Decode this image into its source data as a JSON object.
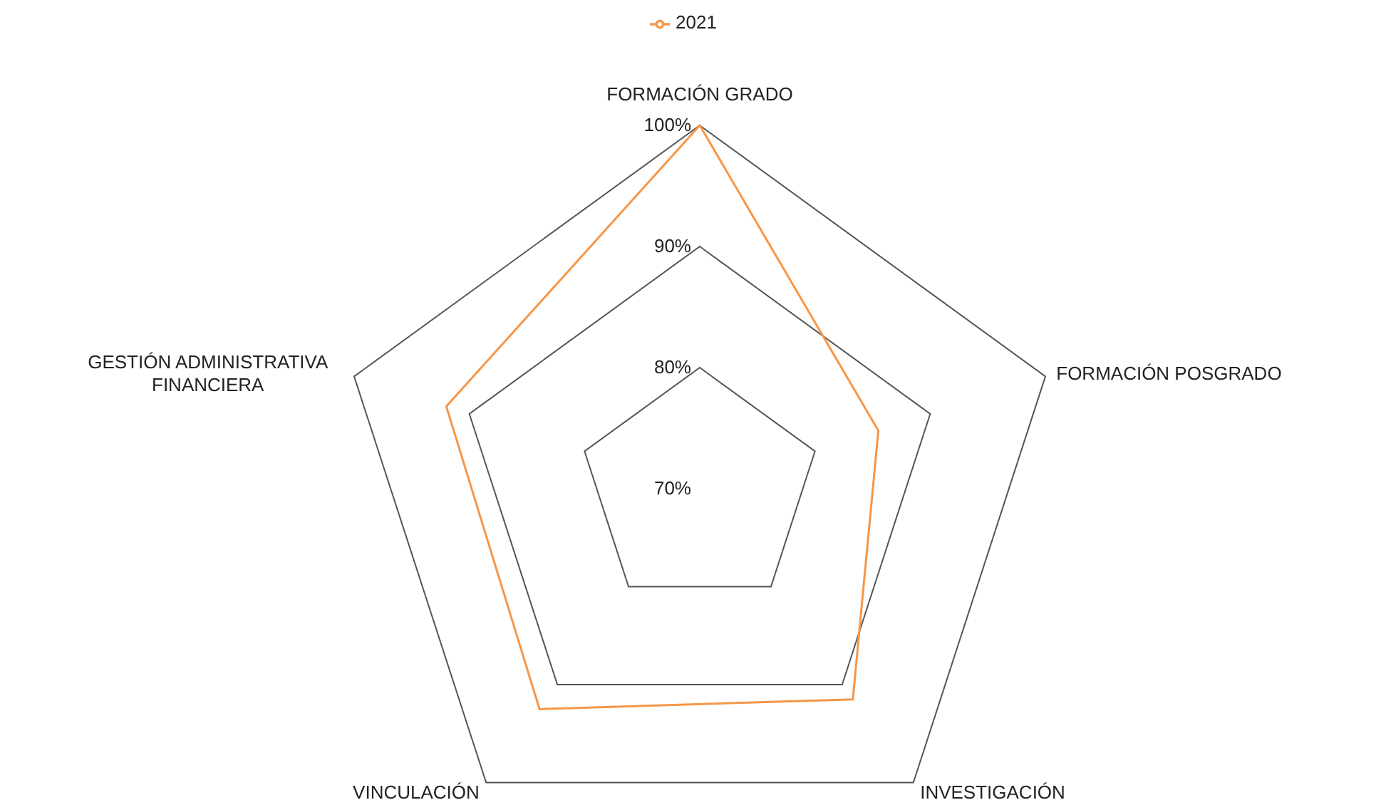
{
  "chart_data": {
    "type": "radar",
    "categories": [
      "FORMACIÓN GRADO",
      "FORMACIÓN POSGRADO",
      "INVESTIGACIÓN",
      "VINCULACIÓN",
      "GESTIÓN ADMINISTRATIVA FINANCIERA"
    ],
    "series": [
      {
        "name": "2021",
        "color": "#f79646",
        "values": [
          100,
          85.5,
          91.5,
          92.5,
          92
        ]
      }
    ],
    "ylim": [
      70,
      100
    ],
    "yticks": [
      {
        "value": 70,
        "label": "70%"
      },
      {
        "value": 80,
        "label": "80%"
      },
      {
        "value": 90,
        "label": "90%"
      },
      {
        "value": 100,
        "label": "100%"
      }
    ],
    "grid": true,
    "legend": "top",
    "marker": "none"
  }
}
